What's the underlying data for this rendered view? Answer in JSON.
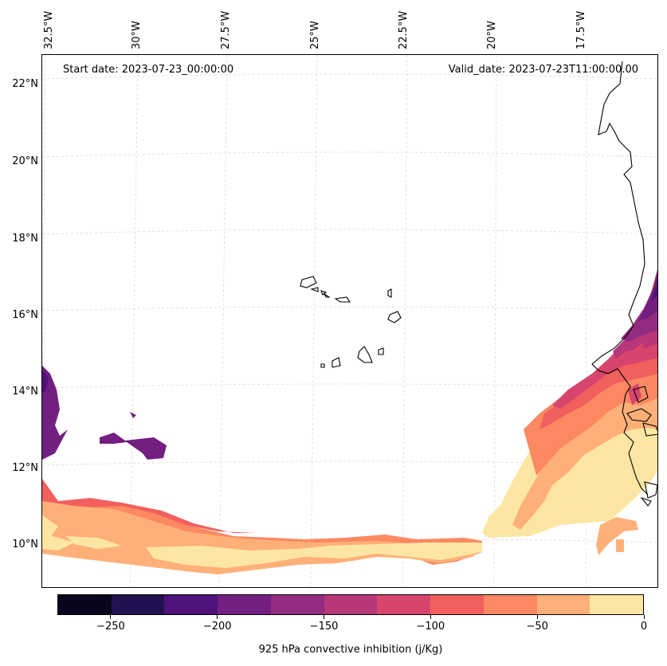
{
  "header": {
    "start_date": "Start date: 2023-07-23_00:00:00",
    "valid_date": "Valid_date: 2023-07-23T11:00:00.00"
  },
  "lat_labels": [
    "22°N",
    "20°N",
    "18°N",
    "16°N",
    "14°N",
    "12°N",
    "10°N"
  ],
  "lon_labels": [
    "32.5°W",
    "30°W",
    "27.5°W",
    "25°W",
    "22.5°W",
    "20°W",
    "17.5°W"
  ],
  "colorbar": {
    "label": "925 hPa convective inhibition (j/Kg)",
    "tick_labels": [
      "−250",
      "−200",
      "−150",
      "−100",
      "−50",
      "0"
    ],
    "levels": [
      -275,
      -250,
      -225,
      -200,
      -175,
      -150,
      -125,
      -100,
      -75,
      -50,
      -25,
      0
    ],
    "colors": [
      "#07061c",
      "#221150",
      "#4f127b",
      "#721f81",
      "#932b80",
      "#b73779",
      "#d8456c",
      "#f1605d",
      "#fc8961",
      "#feb078",
      "#fde6a3"
    ]
  },
  "map": {
    "variable": "925 hPa convective inhibition",
    "units": "j/Kg",
    "extent": {
      "lon_min": -33,
      "lon_max": -16,
      "lat_min": 9,
      "lat_max": 22.5
    },
    "gridlines": true,
    "coastlines": true,
    "features": [
      "Cape Verde islands",
      "West African coastline (Senegal, Gambia, Guinea-Bissau)"
    ]
  }
}
